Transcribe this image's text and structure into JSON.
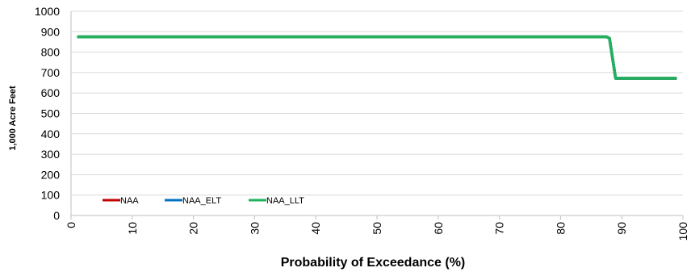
{
  "chart_data": {
    "type": "line",
    "xlabel": "Probability of Exceedance (%)",
    "ylabel": "1,000 Acre Feet",
    "xlim": [
      0,
      100
    ],
    "ylim": [
      0,
      1000
    ],
    "x_ticks": [
      "0",
      "10",
      "20",
      "30",
      "40",
      "50",
      "60",
      "70",
      "80",
      "90",
      "100"
    ],
    "y_ticks": [
      "0",
      "100",
      "200",
      "300",
      "400",
      "500",
      "600",
      "700",
      "800",
      "900",
      "1000"
    ],
    "grid": "horizontal",
    "legend_position": "bottom-left",
    "series": [
      {
        "name": "NAA",
        "color": "#c00000",
        "x": [
          1,
          87.5,
          88,
          89,
          99
        ],
        "y": [
          875,
          875,
          868,
          672,
          672
        ]
      },
      {
        "name": "NAA_ELT",
        "color": "#0070c0",
        "x": [
          1,
          87.5,
          88,
          89,
          99
        ],
        "y": [
          875,
          875,
          868,
          672,
          672
        ]
      },
      {
        "name": "NAA_LLT",
        "color": "#1fb25a",
        "x": [
          1,
          87.5,
          88,
          89,
          99
        ],
        "y": [
          875,
          875,
          868,
          672,
          672
        ]
      }
    ]
  }
}
